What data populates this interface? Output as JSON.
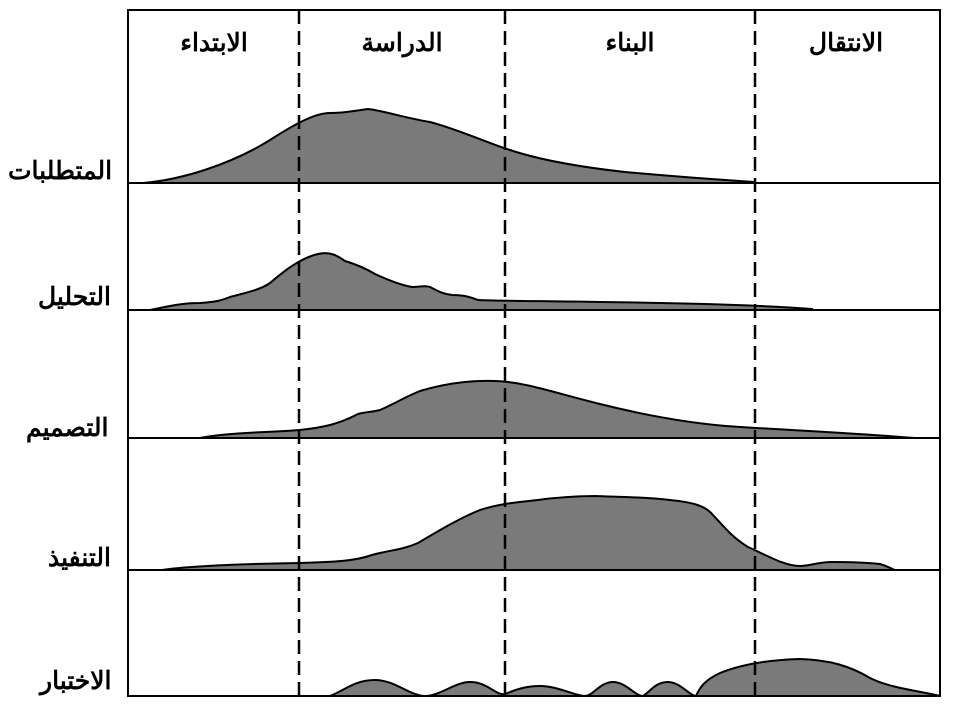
{
  "phases": [
    {
      "label": "الابتداء"
    },
    {
      "label": "الدراسة"
    },
    {
      "label": "البناء"
    },
    {
      "label": "الانتقال"
    }
  ],
  "disciplines": [
    {
      "label": "المتطلبات"
    },
    {
      "label": "التحليل"
    },
    {
      "label": "التصميم"
    },
    {
      "label": "التنفيذ"
    },
    {
      "label": "الاختبار"
    }
  ],
  "colors": {
    "fill": "#7a7a7a",
    "stroke": "#000000",
    "background": "#ffffff"
  }
}
